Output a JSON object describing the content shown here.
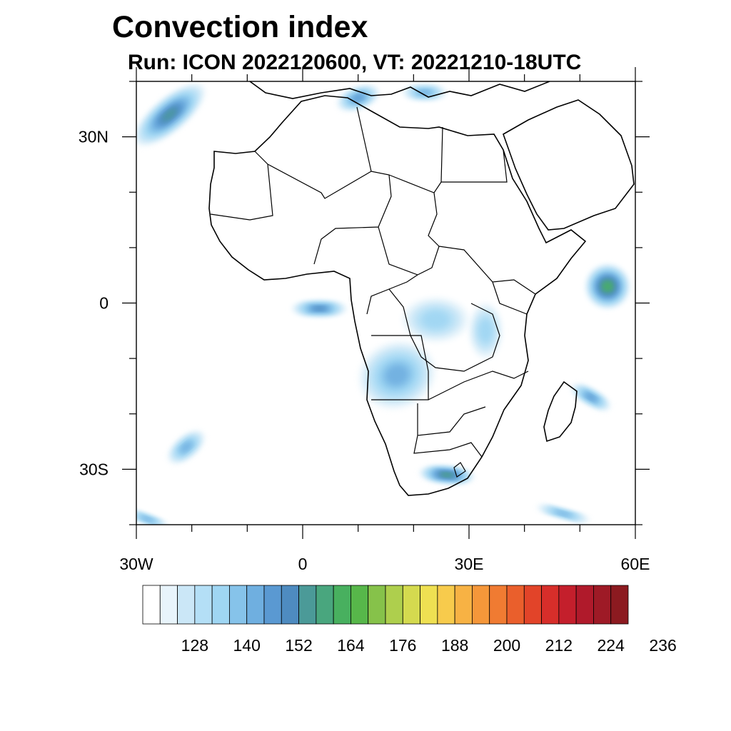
{
  "title": "Convection index",
  "subtitle": "Run: ICON 2022120600,  VT: 20221210-18UTC",
  "map": {
    "lon_range": [
      -30,
      60
    ],
    "lat_range": [
      -40,
      40
    ],
    "lon_ticks": [
      {
        "value": -30,
        "label": "30W"
      },
      {
        "value": 0,
        "label": "0"
      },
      {
        "value": 30,
        "label": "30E"
      },
      {
        "value": 60,
        "label": "60E"
      }
    ],
    "lat_ticks": [
      {
        "value": 30,
        "label": "30N"
      },
      {
        "value": 0,
        "label": "0"
      },
      {
        "value": -30,
        "label": "30S"
      }
    ]
  },
  "colorbar": {
    "colors": [
      "#ffffff",
      "#e8f4fb",
      "#cbe7f7",
      "#b4dff6",
      "#9fd6f3",
      "#86c3ea",
      "#6fafe0",
      "#5a99d2",
      "#4e8bc0",
      "#4b9a98",
      "#49a67e",
      "#48b05f",
      "#57b74a",
      "#86c24a",
      "#aecf4d",
      "#d4da4f",
      "#efe052",
      "#f7cb4c",
      "#f7b244",
      "#f5973a",
      "#f07b32",
      "#ea5f2c",
      "#e24429",
      "#d72e2a",
      "#c41f2c",
      "#b01a2b",
      "#9e1a26",
      "#8c1a20"
    ],
    "labels": [
      "128",
      "140",
      "152",
      "164",
      "176",
      "188",
      "200",
      "212",
      "224",
      "236"
    ]
  },
  "fields": [
    {
      "name": "north-atlantic-band",
      "lon": -24,
      "lat": 34,
      "rx": 8,
      "ry": 3,
      "rot": -40,
      "level": 9
    },
    {
      "name": "mediterranean-west",
      "lon": 10,
      "lat": 37,
      "rx": 4,
      "ry": 2,
      "rot": -20,
      "level": 7
    },
    {
      "name": "mediterranean-east",
      "lon": 22,
      "lat": 38,
      "rx": 4,
      "ry": 1.5,
      "rot": 0,
      "level": 6
    },
    {
      "name": "gulf-of-guinea",
      "lon": 3,
      "lat": -1,
      "rx": 5,
      "ry": 1.5,
      "rot": 0,
      "level": 8
    },
    {
      "name": "angola-zambia",
      "lon": 17,
      "lat": -13,
      "rx": 7,
      "ry": 6,
      "rot": -20,
      "level": 6
    },
    {
      "name": "congo-basin",
      "lon": 24,
      "lat": -3,
      "rx": 6,
      "ry": 4,
      "rot": 0,
      "level": 4
    },
    {
      "name": "east-africa",
      "lon": 33,
      "lat": -5,
      "rx": 3,
      "ry": 5,
      "rot": 0,
      "level": 4
    },
    {
      "name": "south-africa",
      "lon": 26,
      "lat": -31,
      "rx": 5,
      "ry": 1.6,
      "rot": 5,
      "level": 10
    },
    {
      "name": "somali-sea",
      "lon": 55,
      "lat": 3,
      "rx": 4,
      "ry": 4,
      "rot": 0,
      "level": 11
    },
    {
      "name": "mozambique-channel",
      "lon": 52,
      "lat": -17,
      "rx": 4,
      "ry": 1.5,
      "rot": 30,
      "level": 7
    },
    {
      "name": "south-atlantic-west",
      "lon": -21,
      "lat": -26,
      "rx": 4,
      "ry": 2,
      "rot": -40,
      "level": 6
    },
    {
      "name": "south-west-corner",
      "lon": -28,
      "lat": -39,
      "rx": 4,
      "ry": 1,
      "rot": 20,
      "level": 6
    },
    {
      "name": "south-indian-ocean",
      "lon": 47,
      "lat": -38,
      "rx": 5,
      "ry": 1,
      "rot": 15,
      "level": 6
    }
  ]
}
